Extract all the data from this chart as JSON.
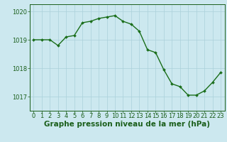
{
  "x": [
    0,
    1,
    2,
    3,
    4,
    5,
    6,
    7,
    8,
    9,
    10,
    11,
    12,
    13,
    14,
    15,
    16,
    17,
    18,
    19,
    20,
    21,
    22,
    23
  ],
  "y": [
    1019.0,
    1019.0,
    1019.0,
    1018.8,
    1019.1,
    1019.15,
    1019.6,
    1019.65,
    1019.75,
    1019.8,
    1019.85,
    1019.65,
    1019.55,
    1019.3,
    1018.65,
    1018.55,
    1017.95,
    1017.45,
    1017.35,
    1017.05,
    1017.05,
    1017.2,
    1017.5,
    1017.85
  ],
  "line_color": "#1a6e1a",
  "marker": "D",
  "marker_size": 2.0,
  "background_color": "#cce8ef",
  "grid_color": "#aad0da",
  "axis_label_color": "#1a5e1a",
  "tick_label_color": "#1a5e1a",
  "xlabel": "Graphe pression niveau de la mer (hPa)",
  "ylim": [
    1016.5,
    1020.25
  ],
  "yticks": [
    1017,
    1018,
    1019,
    1020
  ],
  "xticks": [
    0,
    1,
    2,
    3,
    4,
    5,
    6,
    7,
    8,
    9,
    10,
    11,
    12,
    13,
    14,
    15,
    16,
    17,
    18,
    19,
    20,
    21,
    22,
    23
  ],
  "xlabel_fontsize": 7.5,
  "tick_fontsize": 6.0,
  "line_width": 1.0
}
